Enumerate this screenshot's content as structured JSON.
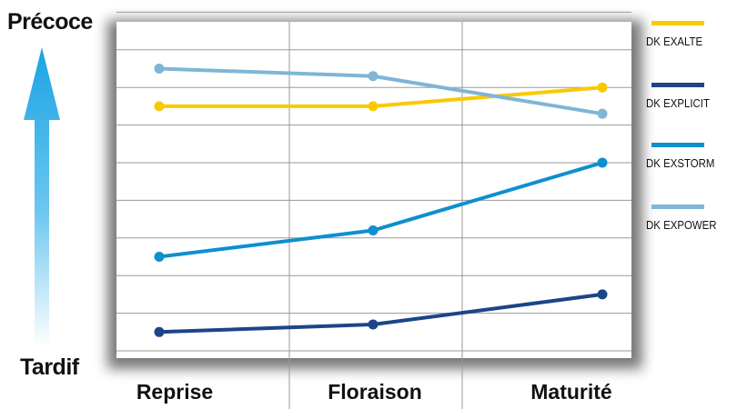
{
  "scale": {
    "top_label": "Précoce",
    "bottom_label": "Tardif"
  },
  "chart_data": {
    "type": "line",
    "categories": [
      "Reprise",
      "Floraison",
      "Maturité"
    ],
    "ylim": [
      0,
      9
    ],
    "grid": true,
    "legend_position": "right",
    "series": [
      {
        "name": "DK EXALTE",
        "color": "#F9C900",
        "values": [
          6.5,
          6.5,
          7.0
        ]
      },
      {
        "name": "DK EXPLICIT",
        "color": "#1C4587",
        "values": [
          0.5,
          0.7,
          1.5
        ]
      },
      {
        "name": "DK EXSTORM",
        "color": "#0E8FCF",
        "values": [
          2.5,
          3.2,
          5.0
        ]
      },
      {
        "name": "DK EXPOWER",
        "color": "#7FB5D5",
        "values": [
          7.5,
          7.3,
          6.3
        ]
      }
    ]
  }
}
